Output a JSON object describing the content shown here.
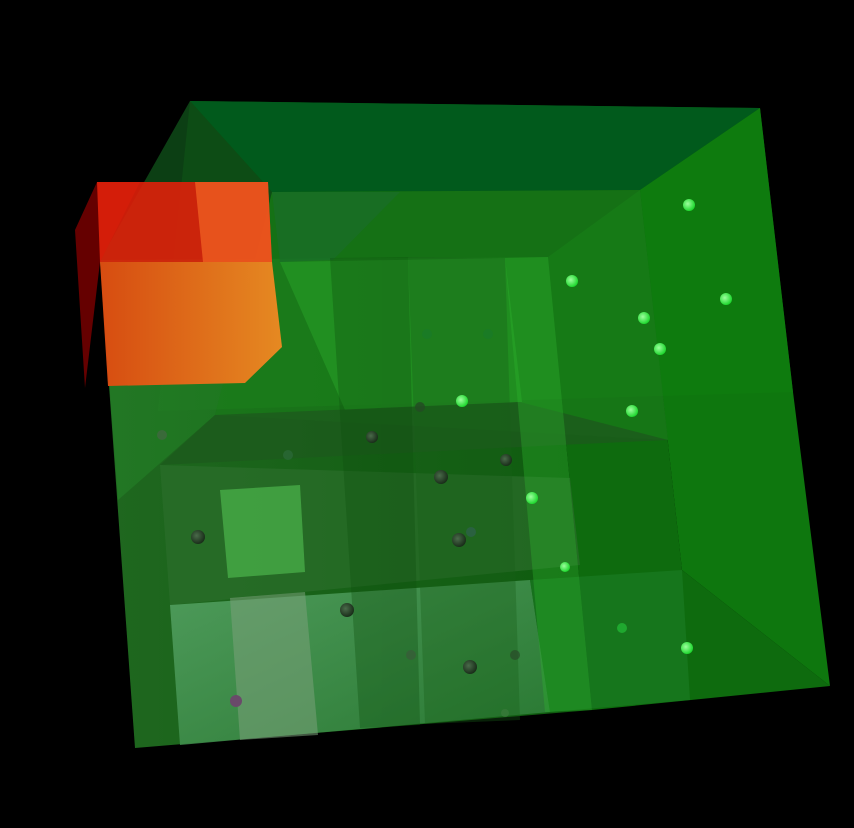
{
  "scene": {
    "background_color": "#000000",
    "main_box_color": "#1f8f1f",
    "inner_box_color": "#2ea52e",
    "highlight_box_color": "#e8701a",
    "sphere_color_bright": "#2eff3a",
    "sphere_color_dark": "#1f3a1f"
  }
}
